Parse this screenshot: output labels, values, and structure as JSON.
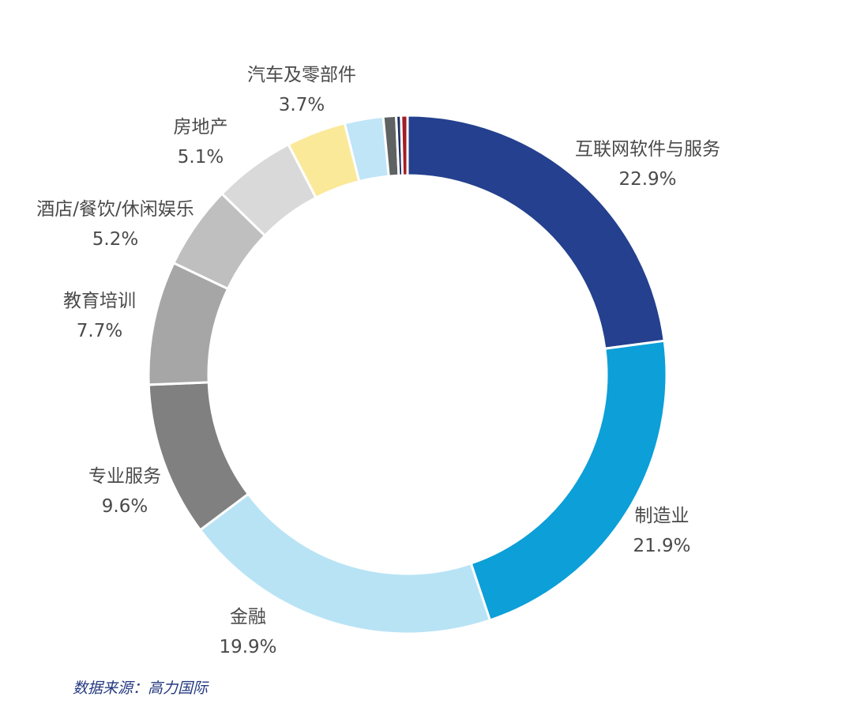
{
  "chart_data": {
    "type": "pie",
    "variant": "donut",
    "start": "top, clockwise",
    "slices": [
      {
        "label": "互联网软件与服务",
        "value": 22.9,
        "value_label": "22.9%",
        "color": "#24408e"
      },
      {
        "label": "制造业",
        "value": 21.9,
        "value_label": "21.9%",
        "color": "#0c9fd8"
      },
      {
        "label": "金融",
        "value": 19.9,
        "value_label": "19.9%",
        "color": "#b8e3f5"
      },
      {
        "label": "专业服务",
        "value": 9.6,
        "value_label": "9.6%",
        "color": "#808080"
      },
      {
        "label": "教育培训",
        "value": 7.7,
        "value_label": "7.7%",
        "color": "#a6a6a6"
      },
      {
        "label": "酒店/餐饮/休闲娱乐",
        "value": 5.2,
        "value_label": "5.2%",
        "color": "#bfbfbf"
      },
      {
        "label": "房地产",
        "value": 5.1,
        "value_label": "5.1%",
        "color": "#d9d9d9"
      },
      {
        "label": "汽车及零部件",
        "value": 3.7,
        "value_label": "3.7%",
        "color": "#fbe99a"
      },
      {
        "label": "",
        "value": 2.4,
        "value_label": "",
        "color": "#bfe5f7"
      },
      {
        "label": "",
        "value": 0.8,
        "value_label": "",
        "color": "#5f6262"
      },
      {
        "label": "",
        "value": 0.3,
        "value_label": "",
        "color": "#1b2d5f"
      },
      {
        "label": "",
        "value": 0.4,
        "value_label": "",
        "color": "#a51c24"
      }
    ]
  },
  "source": "数据来源：高力国际"
}
